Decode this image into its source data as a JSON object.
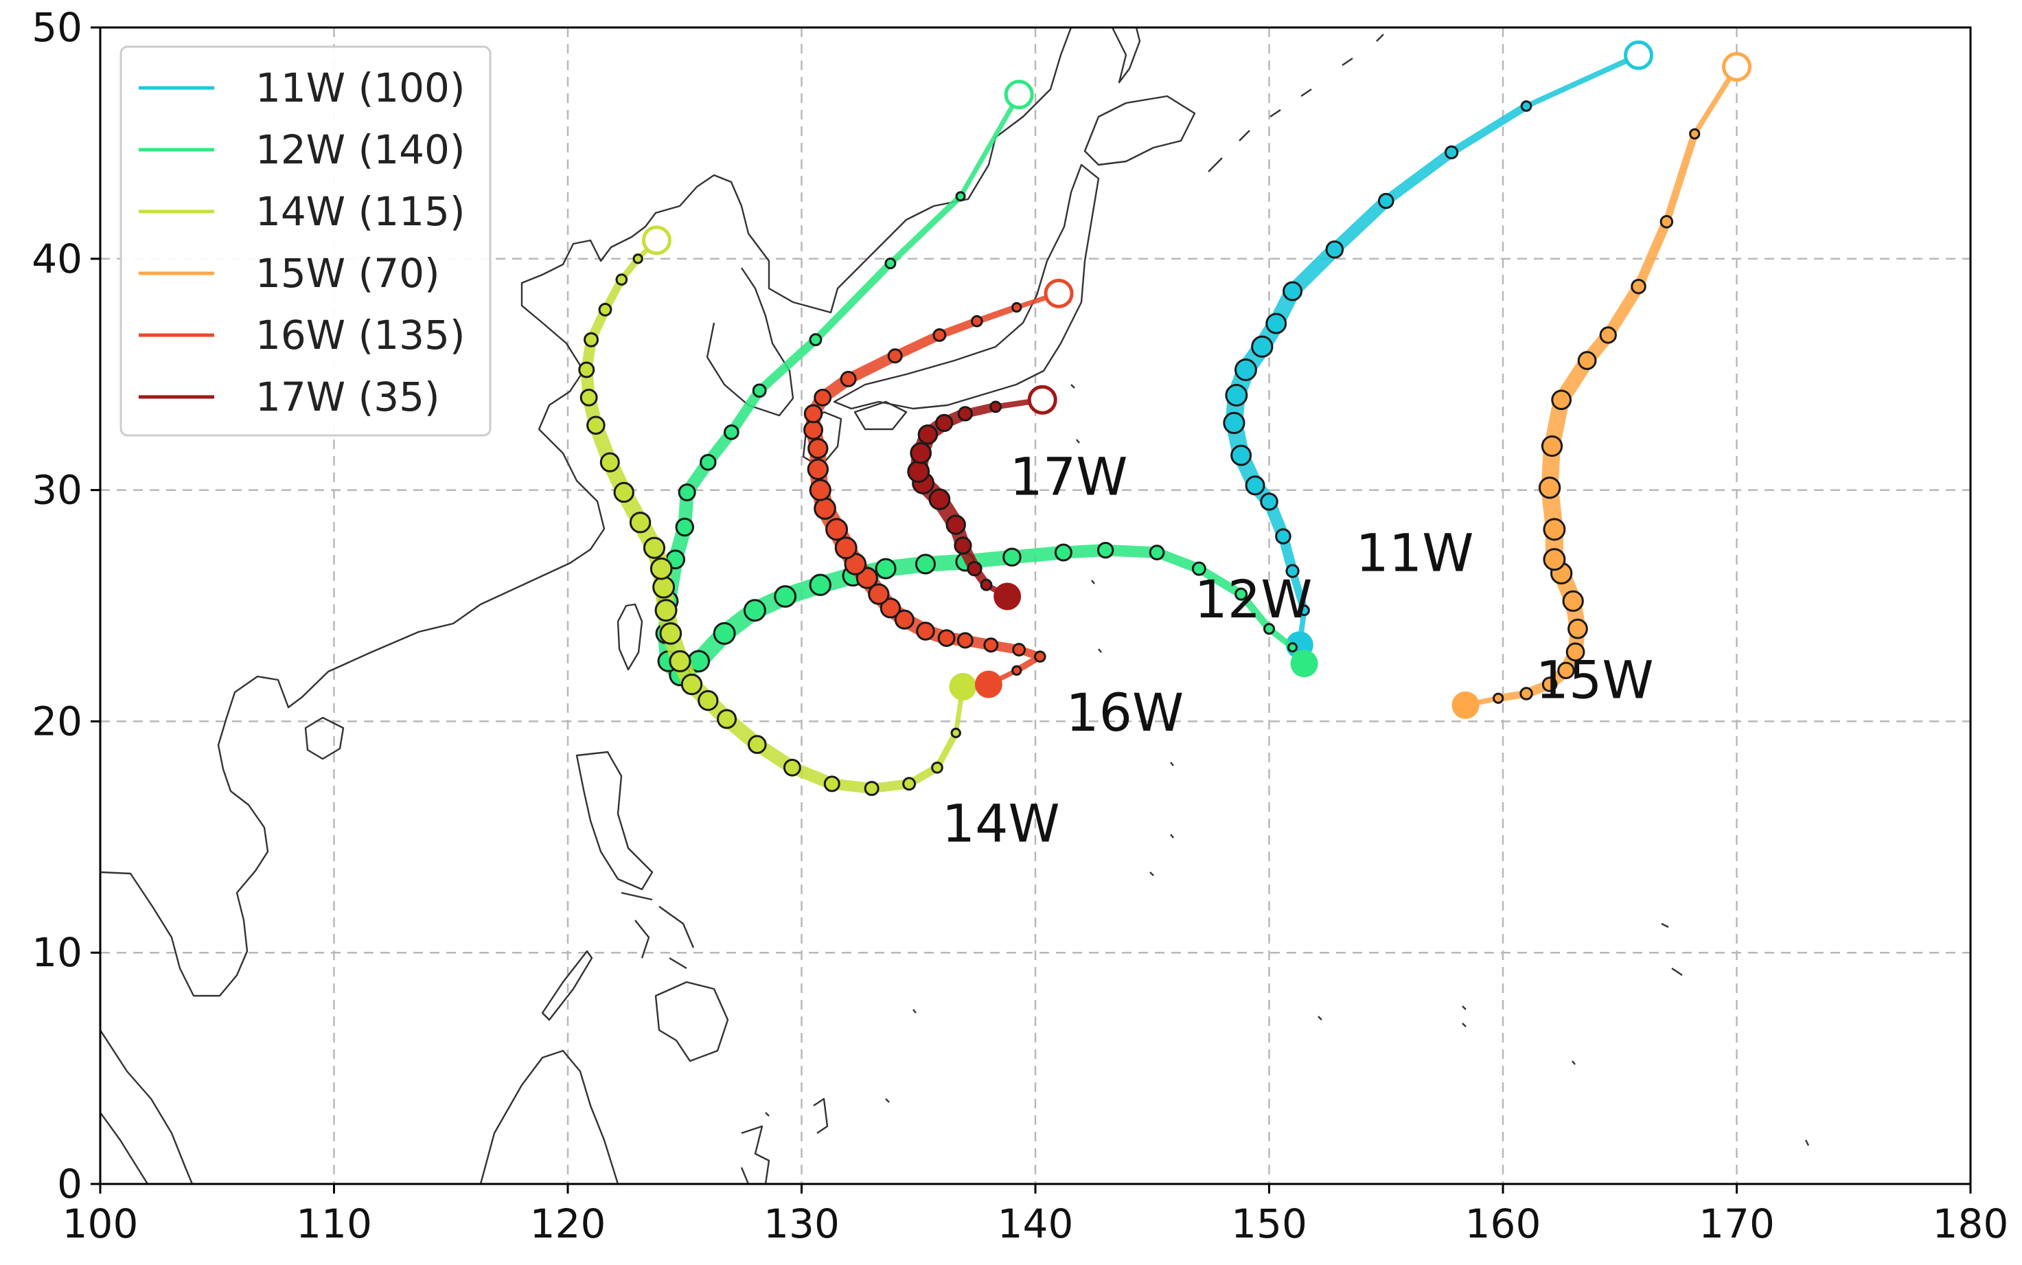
{
  "chart_data": {
    "type": "map",
    "xlim": [
      100,
      180
    ],
    "ylim": [
      0,
      50
    ],
    "xticks": [
      "100",
      "110",
      "120",
      "130",
      "140",
      "150",
      "160",
      "170",
      "180"
    ],
    "yticks": [
      "0",
      "10",
      "20",
      "30",
      "40",
      "50"
    ],
    "grid": true,
    "legend_position": "upper-left",
    "legend": [
      {
        "label": "11W (100)",
        "color": "#1ec8dc"
      },
      {
        "label": "12W (140)",
        "color": "#2ee882"
      },
      {
        "label": "14W (115)",
        "color": "#c6e03c"
      },
      {
        "label": "15W (70)",
        "color": "#ffa84a"
      },
      {
        "label": "16W (135)",
        "color": "#e84a2a"
      },
      {
        "label": "17W (35)",
        "color": "#a01818"
      }
    ],
    "tracks": [
      {
        "label": "11W",
        "color": "#1ec8dc",
        "points": [
          [
            151.3,
            23.3
          ],
          [
            151.5,
            24.8
          ],
          [
            151.0,
            26.5
          ],
          [
            150.6,
            28.0
          ],
          [
            150.0,
            29.5
          ],
          [
            149.4,
            30.2
          ],
          [
            148.8,
            31.5
          ],
          [
            148.5,
            32.9
          ],
          [
            148.6,
            34.1
          ],
          [
            149.0,
            35.2
          ],
          [
            149.7,
            36.2
          ],
          [
            150.3,
            37.2
          ],
          [
            151.0,
            38.6
          ],
          [
            152.8,
            40.4
          ],
          [
            155.0,
            42.5
          ],
          [
            157.8,
            44.6
          ],
          [
            161.0,
            46.6
          ],
          [
            165.8,
            48.8
          ]
        ],
        "label_pos": [
          153.7,
          26.5
        ]
      },
      {
        "label": "12W",
        "color": "#2ee882",
        "points": [
          [
            151.5,
            22.5
          ],
          [
            151.0,
            23.2
          ],
          [
            150.0,
            24.0
          ],
          [
            148.8,
            25.5
          ],
          [
            147.0,
            26.6
          ],
          [
            145.2,
            27.3
          ],
          [
            143.0,
            27.4
          ],
          [
            141.2,
            27.3
          ],
          [
            139.0,
            27.1
          ],
          [
            137.0,
            26.9
          ],
          [
            135.3,
            26.8
          ],
          [
            133.6,
            26.6
          ],
          [
            132.2,
            26.3
          ],
          [
            130.8,
            25.9
          ],
          [
            129.3,
            25.4
          ],
          [
            128.0,
            24.8
          ],
          [
            126.7,
            23.8
          ],
          [
            125.6,
            22.6
          ],
          [
            124.8,
            22.0
          ],
          [
            124.3,
            22.6
          ],
          [
            124.2,
            23.8
          ],
          [
            124.3,
            25.2
          ],
          [
            124.6,
            27.0
          ],
          [
            125.0,
            28.4
          ],
          [
            125.1,
            29.9
          ],
          [
            126.0,
            31.2
          ],
          [
            127.0,
            32.5
          ],
          [
            128.2,
            34.3
          ],
          [
            130.6,
            36.5
          ],
          [
            133.8,
            39.8
          ],
          [
            136.8,
            42.7
          ],
          [
            139.3,
            47.1
          ]
        ],
        "label_pos": [
          146.8,
          24.5
        ]
      },
      {
        "label": "14W",
        "color": "#c6e03c",
        "points": [
          [
            136.9,
            21.5
          ],
          [
            136.6,
            19.5
          ],
          [
            135.8,
            18.0
          ],
          [
            134.6,
            17.3
          ],
          [
            133.0,
            17.1
          ],
          [
            131.3,
            17.3
          ],
          [
            129.6,
            18.0
          ],
          [
            128.1,
            19.0
          ],
          [
            126.8,
            20.1
          ],
          [
            126.0,
            20.9
          ],
          [
            125.3,
            21.6
          ],
          [
            124.8,
            22.6
          ],
          [
            124.4,
            23.8
          ],
          [
            124.2,
            24.8
          ],
          [
            124.1,
            25.8
          ],
          [
            124.0,
            26.6
          ],
          [
            123.7,
            27.5
          ],
          [
            123.1,
            28.6
          ],
          [
            122.4,
            29.9
          ],
          [
            121.8,
            31.2
          ],
          [
            121.2,
            32.8
          ],
          [
            120.9,
            34.0
          ],
          [
            120.8,
            35.2
          ],
          [
            121.0,
            36.5
          ],
          [
            121.6,
            37.8
          ],
          [
            122.3,
            39.1
          ],
          [
            123.0,
            40.0
          ],
          [
            123.8,
            40.8
          ]
        ],
        "label_pos": [
          136.0,
          14.8
        ]
      },
      {
        "label": "15W",
        "color": "#ffa84a",
        "points": [
          [
            158.4,
            20.7
          ],
          [
            159.8,
            21.0
          ],
          [
            161.0,
            21.2
          ],
          [
            162.0,
            21.6
          ],
          [
            162.7,
            22.2
          ],
          [
            163.1,
            23.0
          ],
          [
            163.2,
            24.0
          ],
          [
            163.0,
            25.2
          ],
          [
            162.5,
            26.4
          ],
          [
            162.2,
            27.0
          ],
          [
            162.2,
            28.3
          ],
          [
            162.0,
            30.1
          ],
          [
            162.1,
            31.9
          ],
          [
            162.5,
            33.9
          ],
          [
            163.6,
            35.6
          ],
          [
            164.5,
            36.7
          ],
          [
            165.8,
            38.8
          ],
          [
            167.0,
            41.6
          ],
          [
            168.2,
            45.4
          ],
          [
            170.0,
            48.3
          ]
        ],
        "label_pos": [
          161.4,
          21.0
        ]
      },
      {
        "label": "16W",
        "color": "#e84a2a",
        "points": [
          [
            138.0,
            21.6
          ],
          [
            139.2,
            22.2
          ],
          [
            140.2,
            22.8
          ],
          [
            139.3,
            23.1
          ],
          [
            138.1,
            23.3
          ],
          [
            137.0,
            23.5
          ],
          [
            136.2,
            23.6
          ],
          [
            135.3,
            23.9
          ],
          [
            134.4,
            24.4
          ],
          [
            133.8,
            24.9
          ],
          [
            133.3,
            25.5
          ],
          [
            132.8,
            26.2
          ],
          [
            132.3,
            26.8
          ],
          [
            131.9,
            27.5
          ],
          [
            131.5,
            28.3
          ],
          [
            131.0,
            29.2
          ],
          [
            130.8,
            30.0
          ],
          [
            130.7,
            30.9
          ],
          [
            130.7,
            31.8
          ],
          [
            130.5,
            32.6
          ],
          [
            130.5,
            33.3
          ],
          [
            130.9,
            34.0
          ],
          [
            132.0,
            34.8
          ],
          [
            134.0,
            35.8
          ],
          [
            135.9,
            36.7
          ],
          [
            137.5,
            37.3
          ],
          [
            139.2,
            37.9
          ],
          [
            141.0,
            38.5
          ]
        ],
        "label_pos": [
          141.3,
          19.6
        ]
      },
      {
        "label": "17W",
        "color": "#a01818",
        "points": [
          [
            138.8,
            25.4
          ],
          [
            137.9,
            25.9
          ],
          [
            137.4,
            26.6
          ],
          [
            136.9,
            27.6
          ],
          [
            136.6,
            28.5
          ],
          [
            135.9,
            29.6
          ],
          [
            135.2,
            30.3
          ],
          [
            135.0,
            30.8
          ],
          [
            135.1,
            31.6
          ],
          [
            135.4,
            32.4
          ],
          [
            136.1,
            32.9
          ],
          [
            137.0,
            33.3
          ],
          [
            138.3,
            33.6
          ],
          [
            140.3,
            33.9
          ]
        ],
        "label_pos": [
          138.9,
          29.8
        ]
      }
    ]
  }
}
